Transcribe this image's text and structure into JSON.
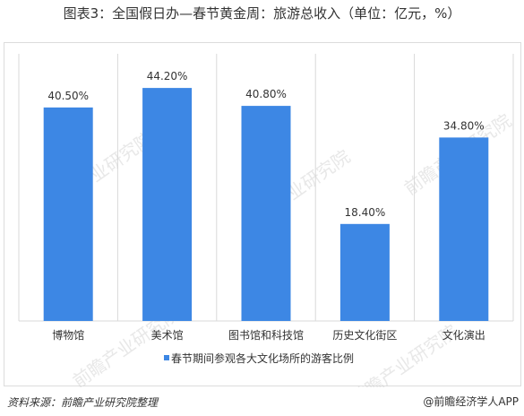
{
  "title": "图表3：全国假日办—春节黄金周：旅游总收入（单位：亿元，%）",
  "footer": {
    "source": "资料来源：前瞻产业研究院整理",
    "brand": "@前瞻经济学人APP"
  },
  "watermark": {
    "text": "前瞻产业研究院"
  },
  "colors": {
    "bar": "#3d87e4",
    "grid": "#d9d9d9",
    "text": "#333333",
    "watermark": "#d2d2d2"
  },
  "chart_data": {
    "type": "bar",
    "title": "",
    "xlabel": "",
    "ylabel": "",
    "categories": [
      "博物馆",
      "美术馆",
      "图书馆和科技馆",
      "历史文化街区",
      "文化演出"
    ],
    "series": [
      {
        "name": "春节期间参观各大文化场所的游客比例",
        "values": [
          40.5,
          44.2,
          40.8,
          18.4,
          34.8
        ],
        "labels": [
          "40.50%",
          "44.20%",
          "40.80%",
          "18.40%",
          "34.80%"
        ]
      }
    ],
    "ylim": [
      0,
      50
    ],
    "grid": true,
    "legend": "bottom"
  }
}
